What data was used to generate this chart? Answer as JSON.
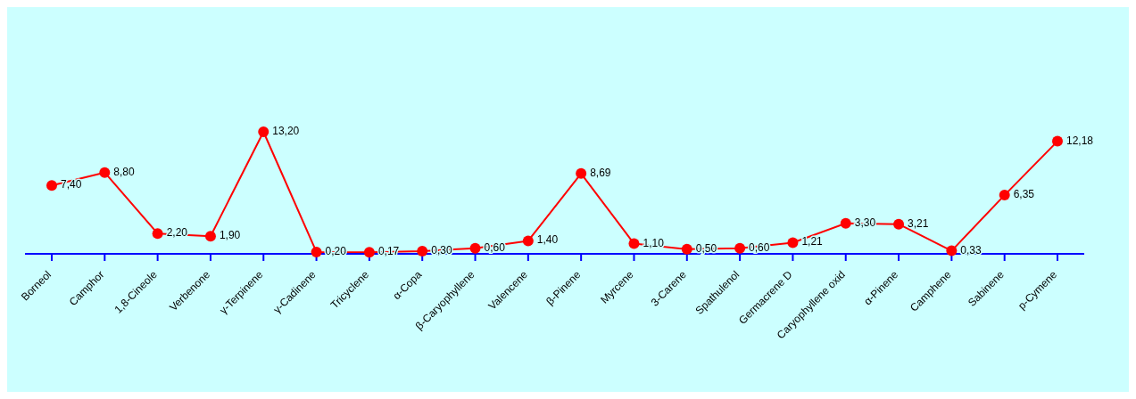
{
  "chart_data": {
    "type": "line",
    "categories": [
      "Borneol",
      "Camphor",
      "1,8-Cineole",
      "Verbenone",
      "γ-Terpinene",
      "γ-Cadinene",
      "Tricyclene",
      "α-Copa",
      "β-Caryophyllene",
      "Valencene",
      "β-Pinene",
      "Myrcene",
      "3-Carene",
      "Spathulenol",
      "Germacrene D",
      "Caryophyllene oxid",
      "α-Pinene",
      "Camphene",
      "Sabinene",
      "p-Cymene"
    ],
    "series": [
      {
        "color": "#ff0000",
        "values": [
          7.4,
          8.8,
          2.2,
          1.9,
          13.2,
          0.2,
          0.17,
          0.3,
          0.6,
          1.4,
          8.69,
          1.1,
          0.5,
          0.6,
          1.21,
          3.3,
          3.21,
          0.33,
          6.35,
          12.18
        ],
        "value_labels": [
          "7,40",
          "8,80",
          "2,20",
          "1,90",
          "13,20",
          "0,20",
          "0,17",
          "0,30",
          "0,60",
          "1,40",
          "8,69",
          "1,10",
          "0,50",
          "0,60",
          "1,21",
          "3,30",
          "3,21",
          "0,33",
          "6,35",
          "12,18"
        ]
      }
    ],
    "marker": "circle",
    "line_style": "solid",
    "grid": false,
    "legend": false
  }
}
